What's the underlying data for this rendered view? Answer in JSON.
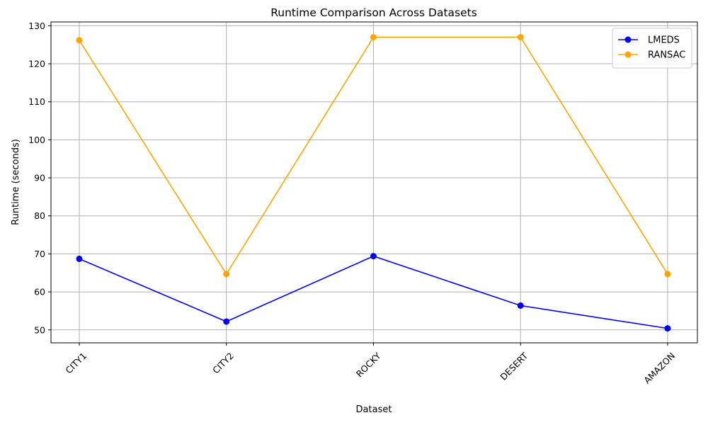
{
  "chart_data": {
    "type": "line",
    "title": "Runtime Comparison Across Datasets",
    "xlabel": "Dataset",
    "ylabel": "Runtime (seconds)",
    "categories": [
      "CITY1",
      "CITY2",
      "ROCKY",
      "DESERT",
      "AMAZON"
    ],
    "yticks": [
      50,
      60,
      70,
      80,
      90,
      100,
      110,
      120,
      130
    ],
    "ylim": [
      46.6,
      131
    ],
    "grid": true,
    "legend_position": "top-right",
    "series": [
      {
        "name": "LMEDS",
        "color": "#0000ff",
        "marker": "circle",
        "values": [
          68.7,
          52.2,
          69.4,
          56.4,
          50.4
        ]
      },
      {
        "name": "RANSAC",
        "color": "#ffa500",
        "marker": "circle",
        "values": [
          126.2,
          64.7,
          127.0,
          127.0,
          64.7
        ]
      }
    ]
  }
}
